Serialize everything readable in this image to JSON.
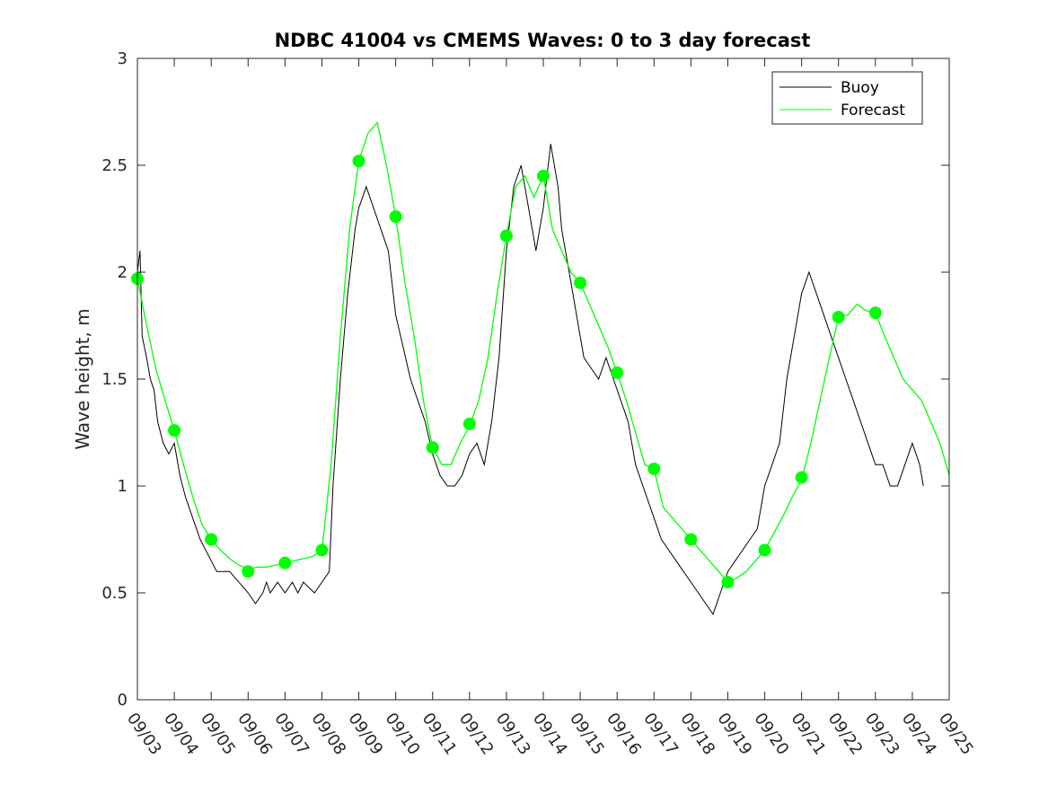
{
  "chart_data": {
    "type": "line",
    "title": "NDBC 41004 vs CMEMS Waves: 0 to 3 day forecast",
    "xlabel": "",
    "ylabel": "Wave height, m",
    "ylim": [
      0,
      3
    ],
    "xlim": [
      0,
      22
    ],
    "yticks": [
      "0",
      "0.5",
      "1",
      "1.5",
      "2",
      "2.5",
      "3"
    ],
    "xticks": [
      "09/03",
      "09/04",
      "09/05",
      "09/06",
      "09/07",
      "09/08",
      "09/09",
      "09/10",
      "09/11",
      "09/12",
      "09/13",
      "09/14",
      "09/15",
      "09/16",
      "09/17",
      "09/18",
      "09/19",
      "09/20",
      "09/21",
      "09/22",
      "09/23",
      "09/24",
      "09/25"
    ],
    "grid": false,
    "legend_position": "top-right",
    "colors": {
      "buoy": "#000000",
      "forecast": "#00ff00",
      "axes": "#262626"
    },
    "series": [
      {
        "name": "Buoy",
        "x": [
          0.0,
          0.07,
          0.13,
          0.25,
          0.35,
          0.45,
          0.55,
          0.7,
          0.85,
          1.0,
          1.15,
          1.3,
          1.5,
          1.7,
          1.85,
          2.0,
          2.15,
          2.3,
          2.5,
          2.75,
          3.0,
          3.2,
          3.4,
          3.5,
          3.6,
          3.8,
          4.0,
          4.2,
          4.35,
          4.5,
          4.8,
          5.0,
          5.2,
          5.3,
          5.5,
          5.7,
          5.9,
          6.0,
          6.1,
          6.2,
          6.4,
          6.6,
          6.8,
          7.0,
          7.2,
          7.4,
          7.6,
          7.8,
          8.0,
          8.2,
          8.4,
          8.6,
          8.8,
          9.0,
          9.2,
          9.4,
          9.6,
          9.8,
          10.0,
          10.2,
          10.4,
          10.6,
          10.8,
          11.0,
          11.2,
          11.4,
          11.5,
          11.7,
          11.9,
          12.1,
          12.3,
          12.5,
          12.7,
          12.9,
          13.1,
          13.3,
          13.5,
          13.7,
          14.0,
          14.2,
          14.4,
          14.6,
          14.8,
          15.0,
          15.2,
          15.4,
          15.6,
          15.8,
          16.0,
          16.2,
          16.4,
          16.6,
          16.8,
          17.0,
          17.2,
          17.4,
          17.6,
          17.8,
          18.0,
          18.2,
          18.4,
          18.6,
          18.8,
          19.0,
          19.2,
          19.4,
          19.6,
          19.8,
          20.0,
          20.2,
          20.4,
          20.6,
          20.8,
          21.0,
          21.2,
          21.3
        ],
        "values": [
          2.0,
          2.1,
          1.7,
          1.6,
          1.5,
          1.45,
          1.3,
          1.2,
          1.15,
          1.2,
          1.05,
          0.95,
          0.85,
          0.75,
          0.7,
          0.65,
          0.6,
          0.6,
          0.6,
          0.55,
          0.5,
          0.45,
          0.5,
          0.55,
          0.5,
          0.55,
          0.5,
          0.55,
          0.5,
          0.55,
          0.5,
          0.55,
          0.6,
          1.0,
          1.5,
          1.9,
          2.2,
          2.3,
          2.35,
          2.4,
          2.3,
          2.2,
          2.1,
          1.8,
          1.65,
          1.5,
          1.4,
          1.3,
          1.15,
          1.05,
          1.0,
          1.0,
          1.05,
          1.15,
          1.2,
          1.1,
          1.3,
          1.6,
          2.1,
          2.4,
          2.5,
          2.3,
          2.1,
          2.3,
          2.6,
          2.4,
          2.2,
          2.0,
          1.8,
          1.6,
          1.55,
          1.5,
          1.6,
          1.5,
          1.4,
          1.3,
          1.1,
          1.0,
          0.85,
          0.75,
          0.7,
          0.65,
          0.6,
          0.55,
          0.5,
          0.45,
          0.4,
          0.5,
          0.6,
          0.65,
          0.7,
          0.75,
          0.8,
          1.0,
          1.1,
          1.2,
          1.5,
          1.7,
          1.9,
          2.0,
          1.9,
          1.8,
          1.7,
          1.6,
          1.5,
          1.4,
          1.3,
          1.2,
          1.1,
          1.1,
          1.0,
          1.0,
          1.1,
          1.2,
          1.1,
          1.0
        ]
      },
      {
        "name": "Forecast",
        "x": [
          0.0,
          0.25,
          0.5,
          0.75,
          1.0,
          1.25,
          1.5,
          1.75,
          2.0,
          2.25,
          2.5,
          2.75,
          3.0,
          3.25,
          3.5,
          3.75,
          4.0,
          4.25,
          4.5,
          4.75,
          5.0,
          5.25,
          5.5,
          5.75,
          6.0,
          6.25,
          6.5,
          6.75,
          7.0,
          7.25,
          7.5,
          7.75,
          8.0,
          8.25,
          8.5,
          8.75,
          9.0,
          9.25,
          9.5,
          9.75,
          10.0,
          10.25,
          10.5,
          10.75,
          11.0,
          11.25,
          11.5,
          11.75,
          12.0,
          12.25,
          12.5,
          12.75,
          13.0,
          13.25,
          13.5,
          13.75,
          14.0,
          14.25,
          14.5,
          14.75,
          15.0,
          15.25,
          15.5,
          15.75,
          16.0,
          16.25,
          16.5,
          16.75,
          17.0,
          17.25,
          17.5,
          17.75,
          18.0,
          18.25,
          18.5,
          18.75,
          19.0,
          19.25,
          19.5,
          19.75,
          20.0,
          20.25,
          20.5,
          20.75,
          21.0,
          21.25,
          21.5,
          21.75,
          22.0
        ],
        "values": [
          1.97,
          1.75,
          1.55,
          1.4,
          1.26,
          1.1,
          0.95,
          0.82,
          0.75,
          0.7,
          0.66,
          0.63,
          0.61,
          0.62,
          0.62,
          0.63,
          0.64,
          0.65,
          0.66,
          0.67,
          0.7,
          1.1,
          1.7,
          2.2,
          2.52,
          2.65,
          2.7,
          2.5,
          2.26,
          1.95,
          1.7,
          1.4,
          1.18,
          1.1,
          1.1,
          1.2,
          1.28,
          1.4,
          1.6,
          1.9,
          2.17,
          2.4,
          2.45,
          2.35,
          2.45,
          2.2,
          2.1,
          2.0,
          1.95,
          1.85,
          1.75,
          1.65,
          1.53,
          1.4,
          1.25,
          1.1,
          1.08,
          0.9,
          0.85,
          0.8,
          0.75,
          0.7,
          0.65,
          0.6,
          0.55,
          0.57,
          0.6,
          0.65,
          0.7,
          0.78,
          0.86,
          0.95,
          1.03,
          1.2,
          1.4,
          1.6,
          1.79,
          1.8,
          1.85,
          1.82,
          1.81,
          1.7,
          1.6,
          1.5,
          1.45,
          1.4,
          1.3,
          1.2,
          1.05
        ]
      }
    ],
    "markers": {
      "x": [
        0,
        1,
        2,
        3,
        4,
        5,
        6,
        7,
        8,
        9,
        10,
        11,
        12,
        13,
        14,
        15,
        16,
        17,
        18,
        19,
        20
      ],
      "values": [
        1.97,
        1.26,
        0.75,
        0.6,
        0.64,
        0.7,
        2.52,
        2.26,
        1.18,
        1.29,
        2.17,
        2.45,
        1.95,
        1.53,
        1.08,
        0.75,
        0.55,
        0.7,
        1.04,
        1.79,
        1.81
      ]
    },
    "legend": [
      "Buoy",
      "Forecast"
    ]
  }
}
